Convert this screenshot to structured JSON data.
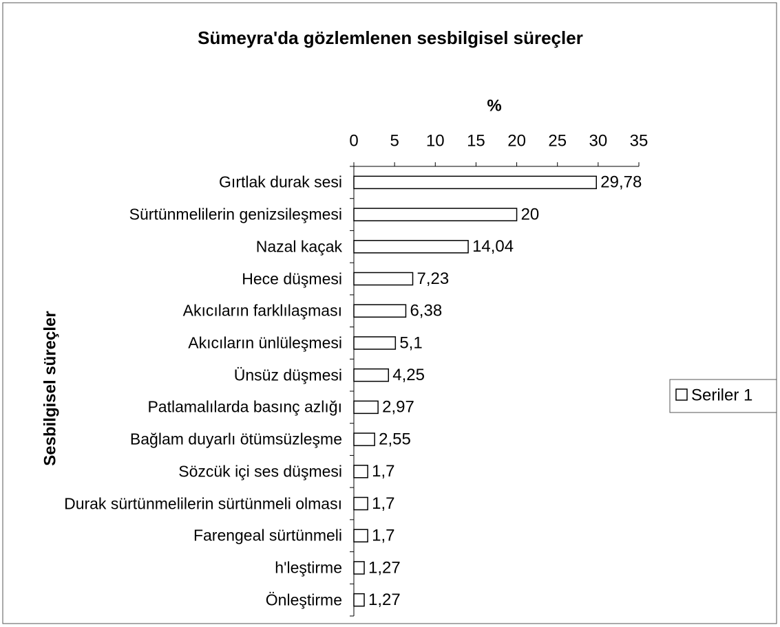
{
  "chart_data": {
    "type": "bar",
    "orientation": "horizontal",
    "title": "Sümeyra'da gözlemlenen sesbilgisel süreçler",
    "x_label": "%",
    "y_label": "Sesbilgisel süreçler",
    "categories": [
      "Gırtlak durak sesi",
      "Sürtünmelilerin genizsileşmesi",
      "Nazal kaçak",
      "Hece düşmesi",
      "Akıcıların farklılaşması",
      "Akıcıların ünlüleşmesi",
      "Ünsüz düşmesi",
      "Patlamalılarda basınç azlığı",
      "Bağlam duyarlı ötümsüzleşme",
      "Sözcük içi ses düşmesi",
      "Durak sürtünmelilerin sürtünmeli olması",
      "Farengeal sürtünmeli",
      "h'leştirme",
      "Önleştirme"
    ],
    "series": [
      {
        "name": "Seriler 1",
        "color": "#ffffff",
        "values": [
          29.78,
          20,
          14.04,
          7.23,
          6.38,
          5.1,
          4.25,
          2.97,
          2.55,
          1.7,
          1.7,
          1.7,
          1.27,
          1.27
        ],
        "value_labels": [
          "29,78",
          "20",
          "14,04",
          "7,23",
          "6,38",
          "5,1",
          "4,25",
          "2,97",
          "2,55",
          "1,7",
          "1,7",
          "1,7",
          "1,27",
          "1,27"
        ]
      }
    ],
    "xlim": [
      0,
      35
    ],
    "xticks": [
      0,
      5,
      10,
      15,
      20,
      25,
      30,
      35
    ],
    "legend": "right",
    "grid": false
  }
}
